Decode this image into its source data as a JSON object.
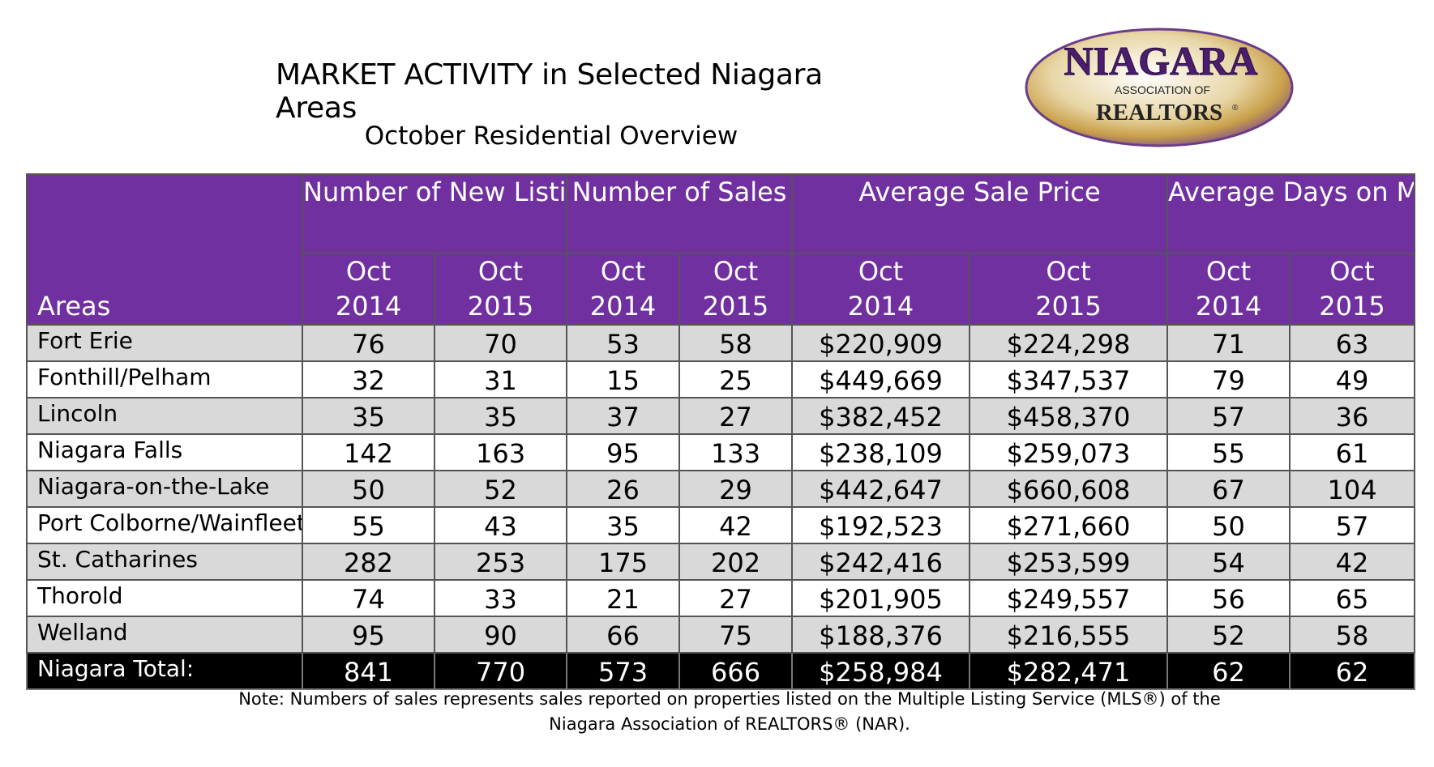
{
  "header": {
    "title": "MARKET ACTIVITY in Selected Niagara Areas",
    "subtitle": "October Residential Overview"
  },
  "logo": {
    "word": "NIAGARA",
    "line2": "ASSOCIATION OF",
    "line3": "REALTORS",
    "mark": "®"
  },
  "table": {
    "groups": [
      "Number of New Listings",
      "Number of Sales",
      "Average Sale Price",
      "Average Days on Market"
    ],
    "areas_label": "Areas",
    "year_month": "Oct",
    "years": [
      "2014",
      "2015"
    ],
    "rows": [
      {
        "area": "Fort Erie",
        "values": [
          "76",
          "70",
          "53",
          "58",
          "$220,909",
          "$224,298",
          "71",
          "63"
        ]
      },
      {
        "area": "Fonthill/Pelham",
        "values": [
          "32",
          "31",
          "15",
          "25",
          "$449,669",
          "$347,537",
          "79",
          "49"
        ]
      },
      {
        "area": "Lincoln",
        "values": [
          "35",
          "35",
          "37",
          "27",
          "$382,452",
          "$458,370",
          "57",
          "36"
        ]
      },
      {
        "area": "Niagara Falls",
        "values": [
          "142",
          "163",
          "95",
          "133",
          "$238,109",
          "$259,073",
          "55",
          "61"
        ]
      },
      {
        "area": "Niagara-on-the-Lake",
        "values": [
          "50",
          "52",
          "26",
          "29",
          "$442,647",
          "$660,608",
          "67",
          "104"
        ]
      },
      {
        "area": "Port Colborne/Wainfleet",
        "values": [
          "55",
          "43",
          "35",
          "42",
          "$192,523",
          "$271,660",
          "50",
          "57"
        ]
      },
      {
        "area": "St. Catharines",
        "values": [
          "282",
          "253",
          "175",
          "202",
          "$242,416",
          "$253,599",
          "54",
          "42"
        ]
      },
      {
        "area": "Thorold",
        "values": [
          "74",
          "33",
          "21",
          "27",
          "$201,905",
          "$249,557",
          "56",
          "65"
        ]
      },
      {
        "area": "Welland",
        "values": [
          "95",
          "90",
          "66",
          "75",
          "$188,376",
          "$216,555",
          "52",
          "58"
        ]
      }
    ],
    "total": {
      "area": "Niagara Total:",
      "values": [
        "841",
        "770",
        "573",
        "666",
        "$258,984",
        "$282,471",
        "62",
        "62"
      ]
    }
  },
  "note": {
    "line1": "Note: Numbers of sales represents sales reported on properties listed on the Multiple Listing Service (MLS®) of the",
    "line2": "Niagara Association of REALTORS® (NAR)."
  },
  "colors": {
    "header_purple": "#7030a0",
    "row_shade": "#d9d9d9",
    "total_row": "#000000",
    "logo_gold": "#b8860b",
    "logo_text": "#4b1d6e"
  }
}
